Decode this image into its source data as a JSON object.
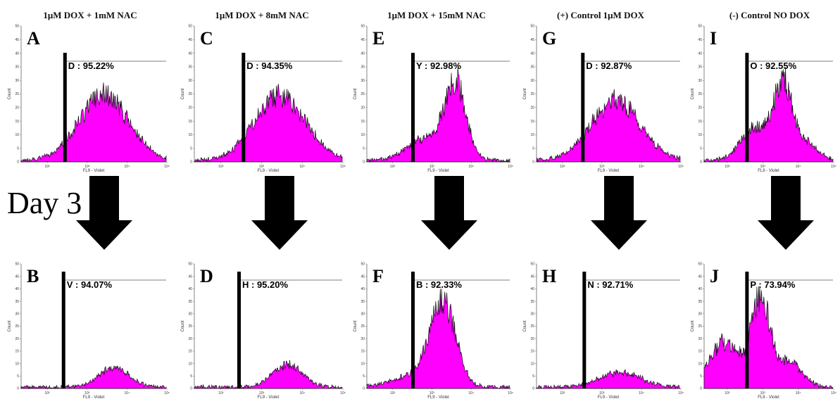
{
  "figure": {
    "day_label": "Day 3",
    "arrow_icon": "down-arrow-icon",
    "colors": {
      "fill": "#ff00ff",
      "outline": "#111111",
      "gate": "#000000",
      "axis": "#666666"
    }
  },
  "columns": [
    {
      "title": "1μM DOX + 1mM NAC"
    },
    {
      "title": "1μM DOX + 8mM NAC"
    },
    {
      "title": "1μM DOX + 15mM NAC"
    },
    {
      "title": "(+) Control 1μM DOX"
    },
    {
      "title": "(-) Control NO DOX"
    }
  ],
  "chart_data": [
    {
      "type": "area",
      "panel": "A",
      "row": "top",
      "column": 0,
      "gate_name": "D",
      "percent": "95.22%",
      "gate_label": "D : 95.22%",
      "ylim": [
        0,
        50
      ],
      "yticks": [
        "0",
        "5",
        "10",
        "15",
        "20",
        "25",
        "30",
        "35",
        "40",
        "45",
        "50"
      ],
      "ylabel": "Count",
      "xlabel": "FL9 - Violet",
      "xticks": [
        "10²",
        "10³",
        "10⁴",
        "10⁵"
      ],
      "gate_x": 0.3,
      "peaks": [
        {
          "center": 0.57,
          "width": 0.17,
          "height": 24
        }
      ],
      "max_count": 30
    },
    {
      "type": "area",
      "panel": "B",
      "row": "bottom",
      "column": 0,
      "gate_name": "V",
      "percent": "94.07%",
      "gate_label": "V : 94.07%",
      "ylim": [
        0,
        50
      ],
      "yticks": [
        "0",
        "5",
        "10",
        "15",
        "20",
        "25",
        "30",
        "35",
        "40",
        "45",
        "50"
      ],
      "ylabel": "Count",
      "xlabel": "FL9 - Violet",
      "xticks": [
        "10²",
        "10³",
        "10⁴",
        "10⁵"
      ],
      "gate_x": 0.29,
      "peaks": [
        {
          "center": 0.64,
          "width": 0.1,
          "height": 8
        }
      ],
      "max_count": 9
    },
    {
      "type": "area",
      "panel": "C",
      "row": "top",
      "column": 1,
      "gate_name": "D",
      "percent": "94.35%",
      "gate_label": "D : 94.35%",
      "ylim": [
        0,
        50
      ],
      "yticks": [
        "0",
        "5",
        "10",
        "15",
        "20",
        "25",
        "30",
        "35",
        "40",
        "45",
        "50"
      ],
      "ylabel": "Count",
      "xlabel": "FL9 - Violet",
      "xticks": [
        "10²",
        "10³",
        "10⁴",
        "10⁵"
      ],
      "gate_x": 0.33,
      "peaks": [
        {
          "center": 0.58,
          "width": 0.17,
          "height": 24
        }
      ],
      "max_count": 30
    },
    {
      "type": "area",
      "panel": "D",
      "row": "bottom",
      "column": 1,
      "gate_name": "H",
      "percent": "95.20%",
      "gate_label": "H : 95.20%",
      "ylim": [
        0,
        50
      ],
      "yticks": [
        "0",
        "5",
        "10",
        "15",
        "20",
        "25",
        "30",
        "35",
        "40",
        "45",
        "50"
      ],
      "ylabel": "Count",
      "xlabel": "FL9 - Violet",
      "xticks": [
        "10²",
        "10³",
        "10⁴",
        "10⁵"
      ],
      "gate_x": 0.3,
      "peaks": [
        {
          "center": 0.63,
          "width": 0.1,
          "height": 9
        }
      ],
      "max_count": 12
    },
    {
      "type": "area",
      "panel": "E",
      "row": "top",
      "column": 2,
      "gate_name": "Y",
      "percent": "92.98%",
      "gate_label": "Y : 92.98%",
      "ylim": [
        0,
        50
      ],
      "yticks": [
        "0",
        "5",
        "10",
        "15",
        "20",
        "25",
        "30",
        "35",
        "40",
        "45",
        "50"
      ],
      "ylabel": "Count",
      "xlabel": "FL9 - Violet",
      "xticks": [
        "10²",
        "10³",
        "10⁴",
        "10⁵"
      ],
      "gate_x": 0.32,
      "peaks": [
        {
          "center": 0.62,
          "width": 0.075,
          "height": 28
        },
        {
          "center": 0.4,
          "width": 0.12,
          "height": 8
        }
      ],
      "max_count": 36
    },
    {
      "type": "area",
      "panel": "F",
      "row": "bottom",
      "column": 2,
      "gate_name": "B",
      "percent": "92.33%",
      "gate_label": "B : 92.33%",
      "ylim": [
        0,
        50
      ],
      "yticks": [
        "0",
        "5",
        "10",
        "15",
        "20",
        "25",
        "30",
        "35",
        "40",
        "45",
        "50"
      ],
      "ylabel": "Count",
      "xlabel": "FL9 - Violet",
      "xticks": [
        "10²",
        "10³",
        "10⁴",
        "10⁵"
      ],
      "gate_x": 0.32,
      "peaks": [
        {
          "center": 0.53,
          "width": 0.09,
          "height": 34
        },
        {
          "center": 0.3,
          "width": 0.14,
          "height": 4
        }
      ],
      "max_count": 40
    },
    {
      "type": "area",
      "panel": "G",
      "row": "top",
      "column": 3,
      "gate_name": "D",
      "percent": "92.87%",
      "gate_label": "D : 92.87%",
      "ylim": [
        0,
        50
      ],
      "yticks": [
        "0",
        "5",
        "10",
        "15",
        "20",
        "25",
        "30",
        "35",
        "40",
        "45",
        "50"
      ],
      "ylabel": "Count",
      "xlabel": "FL9 - Violet",
      "xticks": [
        "10²",
        "10³",
        "10⁴",
        "10⁵"
      ],
      "gate_x": 0.32,
      "peaks": [
        {
          "center": 0.55,
          "width": 0.17,
          "height": 22
        }
      ],
      "max_count": 28
    },
    {
      "type": "area",
      "panel": "H",
      "row": "bottom",
      "column": 3,
      "gate_name": "N",
      "percent": "92.71%",
      "gate_label": "N : 92.71%",
      "ylim": [
        0,
        50
      ],
      "yticks": [
        "0",
        "5",
        "10",
        "15",
        "20",
        "25",
        "30",
        "35",
        "40",
        "45",
        "50"
      ],
      "ylabel": "Count",
      "xlabel": "FL9 - Violet",
      "xticks": [
        "10²",
        "10³",
        "10⁴",
        "10⁵"
      ],
      "gate_x": 0.33,
      "peaks": [
        {
          "center": 0.58,
          "width": 0.14,
          "height": 6
        }
      ],
      "max_count": 9
    },
    {
      "type": "area",
      "panel": "I",
      "row": "top",
      "column": 4,
      "gate_name": "O",
      "percent": "92.55%",
      "gate_label": "O : 92.55%",
      "ylim": [
        0,
        50
      ],
      "yticks": [
        "0",
        "5",
        "10",
        "15",
        "20",
        "25",
        "30",
        "35",
        "40",
        "45",
        "50"
      ],
      "ylabel": "Count",
      "xlabel": "FL9 - Violet",
      "xticks": [
        "10²",
        "10³",
        "10⁴",
        "10⁵"
      ],
      "gate_x": 0.33,
      "peaks": [
        {
          "center": 0.61,
          "width": 0.07,
          "height": 27
        },
        {
          "center": 0.4,
          "width": 0.11,
          "height": 12
        },
        {
          "center": 0.78,
          "width": 0.09,
          "height": 7
        }
      ],
      "max_count": 37
    },
    {
      "type": "area",
      "panel": "J",
      "row": "bottom",
      "column": 4,
      "gate_name": "P",
      "percent": "73.94%",
      "gate_label": "P : 73.94%",
      "ylim": [
        0,
        50
      ],
      "yticks": [
        "0",
        "5",
        "10",
        "15",
        "20",
        "25",
        "30",
        "35",
        "40",
        "45",
        "50"
      ],
      "ylabel": "Count",
      "xlabel": "FL9 - Violet",
      "xticks": [
        "10²",
        "10³",
        "10⁴",
        "10⁵"
      ],
      "gate_x": 0.33,
      "peaks": [
        {
          "center": 0.44,
          "width": 0.07,
          "height": 36
        },
        {
          "center": 0.16,
          "width": 0.12,
          "height": 18
        },
        {
          "center": 0.66,
          "width": 0.1,
          "height": 10
        }
      ],
      "max_count": 41
    }
  ]
}
